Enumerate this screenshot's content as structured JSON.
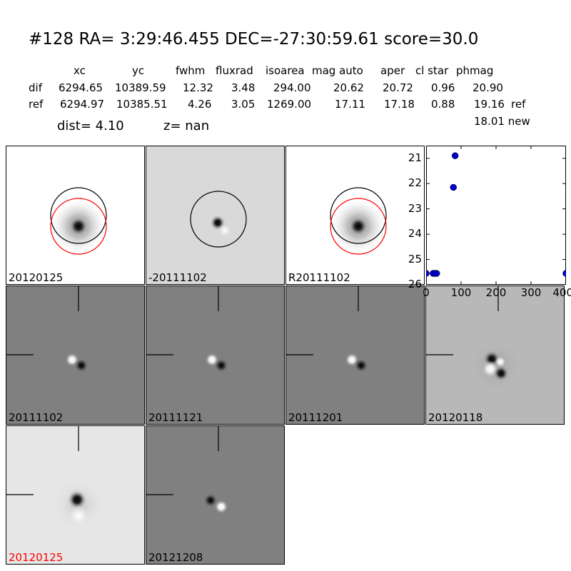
{
  "header": {
    "title": "#128   RA= 3:29:46.455 DEC=-27:30:59.61       score=30.0",
    "columns": [
      "xc",
      "yc",
      "fwhm",
      "fluxrad",
      "isoarea",
      "mag auto",
      "aper",
      "cl star",
      "phmag"
    ],
    "rows": [
      {
        "label": "dif",
        "values": [
          "6294.65",
          "10389.59",
          "12.32",
          "3.48",
          "294.00",
          "20.62",
          "20.72",
          "0.96",
          "20.90"
        ],
        "suffix": ""
      },
      {
        "label": "ref",
        "values": [
          "6294.97",
          "10385.51",
          "4.26",
          "3.05",
          "1269.00",
          "17.11",
          "17.18",
          "0.88",
          "19.16"
        ],
        "suffix": "ref"
      }
    ],
    "new_line": "18.01 new",
    "dist_text": "dist=  4.10",
    "z_text": "z=   nan"
  },
  "panels": [
    {
      "label": "20120125",
      "style": "stamp",
      "bg": "#ffffff",
      "label_color": "#000000"
    },
    {
      "label": "-20111102",
      "style": "diff-stamp",
      "bg": "#d9d9d9",
      "label_color": "#000000"
    },
    {
      "label": "R20111102",
      "style": "stamp",
      "bg": "#ffffff",
      "label_color": "#000000"
    },
    {
      "label": "20111102",
      "style": "dipole",
      "bg": "#808080",
      "label_color": "#000000"
    },
    {
      "label": "20111121",
      "style": "dipole",
      "bg": "#808080",
      "label_color": "#000000"
    },
    {
      "label": "20111201",
      "style": "dipole",
      "bg": "#808080",
      "label_color": "#000000"
    },
    {
      "label": "20120118",
      "style": "noisy-dipole",
      "bg": "#b8b8b8",
      "label_color": "#000000"
    },
    {
      "label": "20120125",
      "style": "bright-diff",
      "bg": "#e6e6e6",
      "label_color": "#ff0000"
    },
    {
      "label": "20121208",
      "style": "dipole-rev",
      "bg": "#808080",
      "label_color": "#000000"
    }
  ],
  "colors": {
    "marker": "#0000cc",
    "ref_circle": "#ff0000",
    "det_circle": "#000000"
  },
  "chart_data": {
    "type": "scatter",
    "x": [
      0,
      20,
      25,
      30,
      78,
      83,
      400
    ],
    "y": [
      25.55,
      25.55,
      25.55,
      25.55,
      22.15,
      20.9,
      25.55
    ],
    "xlim": [
      0,
      400
    ],
    "ylim": [
      26,
      20.5
    ],
    "xticks": [
      "0",
      "100",
      "200",
      "300",
      "400"
    ],
    "yticks": [
      "21",
      "22",
      "23",
      "24",
      "25",
      "26"
    ],
    "inverted_y": true
  }
}
